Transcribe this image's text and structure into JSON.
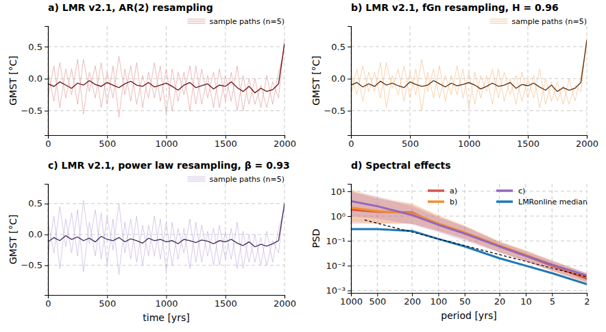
{
  "chart_data": [
    {
      "type": "line",
      "title": "a) LMR v2.1, AR(2) resampling",
      "ylabel": "GMST [°C]",
      "x": [
        0,
        50,
        100,
        150,
        200,
        250,
        300,
        350,
        400,
        450,
        500,
        550,
        600,
        650,
        700,
        750,
        800,
        850,
        900,
        950,
        1000,
        1050,
        1100,
        1150,
        1200,
        1250,
        1300,
        1350,
        1400,
        1450,
        1500,
        1550,
        1600,
        1650,
        1700,
        1750,
        1800,
        1850,
        1900,
        1950,
        2000
      ],
      "xlim": [
        0,
        2000
      ],
      "xticks": [
        0,
        500,
        1000,
        1500,
        2000
      ],
      "ylim": [
        -0.88,
        0.82
      ],
      "yticks": [
        {
          "value": -0.5,
          "label": "−0.5"
        },
        {
          "value": 0,
          "label": "0.0"
        },
        0.5
      ],
      "grid": true,
      "legend": "above right",
      "series": [
        {
          "name": "sample paths (n=5)",
          "color": "#e39a9a",
          "values": [
            0.1,
            -0.35,
            0.25,
            -0.3,
            0.15,
            -0.4,
            0.3,
            -0.2,
            0.2,
            -0.45,
            0.1,
            -0.3,
            0.35,
            -0.25,
            0.2,
            -0.4,
            0.05,
            -0.3,
            0.25,
            -0.35,
            0.15,
            -0.5,
            0.1,
            -0.25,
            0.2,
            -0.4,
            0.15,
            -0.3,
            0.1,
            -0.45,
            0.05,
            -0.35,
            0.2,
            -0.5,
            0.0,
            -0.4,
            -0.1,
            -0.45,
            -0.05,
            -0.3,
            0.6
          ]
        },
        {
          "color": "#e39a9a",
          "values": [
            -0.3,
            0.2,
            -0.45,
            0.15,
            -0.25,
            0.3,
            -0.55,
            0.1,
            -0.3,
            0.25,
            -0.4,
            0.2,
            -0.6,
            0.15,
            -0.35,
            0.25,
            -0.45,
            0.1,
            -0.3,
            0.2,
            -0.55,
            0.15,
            -0.35,
            0.1,
            -0.5,
            0.2,
            -0.4,
            0.05,
            -0.45,
            0.15,
            -0.35,
            0.1,
            -0.5,
            0.05,
            -0.4,
            0.0,
            -0.45,
            0.05,
            -0.4,
            0.1,
            0.45
          ]
        },
        {
          "color": "#6b0f12",
          "values": [
            -0.08,
            -0.12,
            -0.05,
            -0.1,
            -0.15,
            -0.07,
            -0.1,
            -0.03,
            -0.09,
            -0.12,
            -0.06,
            -0.1,
            -0.14,
            -0.08,
            -0.04,
            -0.1,
            -0.12,
            -0.06,
            -0.13,
            -0.1,
            -0.07,
            -0.12,
            -0.18,
            -0.1,
            -0.06,
            -0.14,
            -0.11,
            -0.08,
            -0.16,
            -0.1,
            -0.12,
            -0.05,
            -0.14,
            -0.2,
            -0.12,
            -0.22,
            -0.15,
            -0.2,
            -0.17,
            -0.08,
            0.55
          ]
        }
      ]
    },
    {
      "type": "line",
      "title": "b) LMR v2.1, fGn resampling, H = 0.96",
      "ylabel": "GMST [°C]",
      "x": [
        0,
        50,
        100,
        150,
        200,
        250,
        300,
        350,
        400,
        450,
        500,
        550,
        600,
        650,
        700,
        750,
        800,
        850,
        900,
        950,
        1000,
        1050,
        1100,
        1150,
        1200,
        1250,
        1300,
        1350,
        1400,
        1450,
        1500,
        1550,
        1600,
        1650,
        1700,
        1750,
        1800,
        1850,
        1900,
        1950,
        2000
      ],
      "xlim": [
        0,
        2000
      ],
      "xticks": [
        0,
        500,
        1000,
        1500,
        2000
      ],
      "ylim": [
        -0.88,
        0.82
      ],
      "yticks": [
        {
          "value": -0.5,
          "label": "−0.5"
        },
        {
          "value": 0,
          "label": "0.0"
        },
        0.5
      ],
      "grid": true,
      "legend": "above right",
      "series": [
        {
          "name": "sample paths (n=5)",
          "color": "#f6bd85",
          "values": [
            0.05,
            -0.25,
            0.2,
            -0.2,
            0.1,
            -0.3,
            0.25,
            -0.15,
            0.15,
            -0.35,
            0.1,
            -0.25,
            0.3,
            -0.2,
            0.15,
            -0.3,
            0.05,
            -0.25,
            0.2,
            -0.3,
            0.1,
            -0.4,
            0.05,
            -0.2,
            0.15,
            -0.3,
            0.1,
            -0.25,
            0.05,
            -0.35,
            0.0,
            -0.3,
            0.15,
            -0.4,
            -0.05,
            -0.35,
            -0.1,
            -0.4,
            -0.1,
            -0.2,
            0.65
          ]
        },
        {
          "color": "#f6bd85",
          "values": [
            -0.25,
            0.15,
            -0.35,
            0.1,
            -0.2,
            0.25,
            -0.45,
            0.05,
            -0.25,
            0.2,
            -0.3,
            0.15,
            -0.5,
            0.1,
            -0.3,
            0.2,
            -0.35,
            0.05,
            -0.25,
            0.15,
            -0.45,
            0.1,
            -0.3,
            0.05,
            -0.4,
            0.15,
            -0.35,
            0.0,
            -0.4,
            0.1,
            -0.3,
            0.05,
            -0.45,
            0.0,
            -0.35,
            -0.05,
            -0.4,
            0.0,
            -0.35,
            0.05,
            0.5
          ]
        },
        {
          "color": "#5a2d0c",
          "values": [
            -0.1,
            -0.06,
            -0.13,
            -0.08,
            -0.12,
            -0.04,
            -0.1,
            -0.07,
            -0.11,
            -0.14,
            -0.05,
            -0.09,
            -0.12,
            -0.1,
            -0.03,
            -0.08,
            -0.13,
            -0.07,
            -0.11,
            -0.09,
            -0.06,
            -0.1,
            -0.16,
            -0.12,
            -0.07,
            -0.12,
            -0.1,
            -0.06,
            -0.15,
            -0.09,
            -0.11,
            -0.07,
            -0.13,
            -0.18,
            -0.1,
            -0.2,
            -0.14,
            -0.18,
            -0.15,
            -0.06,
            0.6
          ]
        }
      ]
    },
    {
      "type": "line",
      "title": "c) LMR v2.1, power law resampling, β = 0.93",
      "xlabel": "time [yrs]",
      "ylabel": "GMST [°C]",
      "x": [
        0,
        50,
        100,
        150,
        200,
        250,
        300,
        350,
        400,
        450,
        500,
        550,
        600,
        650,
        700,
        750,
        800,
        850,
        900,
        950,
        1000,
        1050,
        1100,
        1150,
        1200,
        1250,
        1300,
        1350,
        1400,
        1450,
        1500,
        1550,
        1600,
        1650,
        1700,
        1750,
        1800,
        1850,
        1900,
        1950,
        2000
      ],
      "xlim": [
        0,
        2000
      ],
      "xticks": [
        0,
        500,
        1000,
        1500,
        2000
      ],
      "ylim": [
        -0.98,
        0.82
      ],
      "yticks": [
        {
          "value": -0.5,
          "label": "−0.5"
        },
        {
          "value": 0,
          "label": "0.0"
        },
        0.5
      ],
      "grid": true,
      "legend": "above right",
      "series": [
        {
          "name": "sample paths (n=5)",
          "color": "#c4aee0",
          "values": [
            0.2,
            -0.3,
            0.45,
            -0.2,
            0.35,
            -0.35,
            0.55,
            -0.15,
            0.4,
            -0.4,
            0.3,
            -0.25,
            0.5,
            -0.3,
            0.25,
            -0.45,
            0.15,
            -0.35,
            0.3,
            -0.4,
            0.2,
            -0.5,
            0.1,
            -0.3,
            0.25,
            -0.45,
            0.15,
            -0.35,
            0.1,
            -0.5,
            0.05,
            -0.4,
            0.2,
            -0.55,
            0.0,
            -0.45,
            -0.05,
            -0.5,
            -0.1,
            -0.3,
            0.55
          ]
        },
        {
          "color": "#c4aee0",
          "values": [
            -0.35,
            0.3,
            -0.55,
            0.25,
            -0.3,
            0.4,
            -0.6,
            0.2,
            -0.35,
            0.35,
            -0.5,
            0.25,
            -0.65,
            0.2,
            -0.4,
            0.3,
            -0.5,
            0.15,
            -0.35,
            0.25,
            -0.6,
            0.2,
            -0.4,
            0.1,
            -0.55,
            0.2,
            -0.45,
            0.05,
            -0.5,
            0.15,
            -0.4,
            0.1,
            -0.55,
            0.05,
            -0.45,
            0.0,
            -0.5,
            0.05,
            -0.45,
            0.1,
            0.4
          ]
        },
        {
          "color": "#3f2a56",
          "values": [
            -0.12,
            -0.05,
            -0.1,
            -0.02,
            -0.08,
            -0.04,
            -0.1,
            -0.06,
            -0.12,
            -0.03,
            -0.08,
            -0.1,
            -0.05,
            -0.12,
            -0.07,
            -0.1,
            -0.14,
            -0.06,
            -0.1,
            -0.08,
            -0.12,
            -0.1,
            -0.15,
            -0.08,
            -0.1,
            -0.13,
            -0.09,
            -0.11,
            -0.15,
            -0.1,
            -0.12,
            -0.08,
            -0.14,
            -0.18,
            -0.12,
            -0.2,
            -0.16,
            -0.19,
            -0.15,
            -0.1,
            0.5
          ]
        }
      ]
    },
    {
      "type": "line",
      "title": "d) Spectral effects",
      "xlabel": "period [yrs]",
      "ylabel": "PSD",
      "log": true,
      "grid": true,
      "legend": "upper right",
      "x": [
        1000,
        500,
        200,
        100,
        50,
        20,
        10,
        5,
        2
      ],
      "xlim": [
        1000,
        2
      ],
      "xticks": [
        1000,
        500,
        200,
        100,
        50,
        20,
        10,
        5,
        2
      ],
      "ylim": [
        0.0008,
        20
      ],
      "yticks": [
        {
          "value": 0.001,
          "label": "10⁻³"
        },
        {
          "value": 0.01,
          "label": "10⁻²"
        },
        {
          "value": 0.1,
          "label": "10⁻¹"
        },
        {
          "value": 1,
          "label": "10⁰"
        },
        {
          "value": 10,
          "label": "10¹"
        }
      ],
      "series": [
        {
          "name": "a)",
          "color": "#d9534f",
          "values": [
            1.8,
            1.5,
            1.4,
            0.45,
            0.2,
            0.06,
            0.025,
            0.01,
            0.003
          ],
          "lower": [
            0.5,
            0.5,
            0.5,
            0.25,
            0.12,
            0.035,
            0.015,
            0.006,
            0.002
          ],
          "upper": [
            10,
            5,
            3,
            1,
            0.4,
            0.09,
            0.04,
            0.015,
            0.005
          ]
        },
        {
          "name": "b)",
          "color": "#f28e2b",
          "values": [
            2.2,
            1.6,
            1.3,
            0.5,
            0.22,
            0.065,
            0.027,
            0.011,
            0.0035
          ],
          "lower": [
            0.6,
            0.5,
            0.5,
            0.25,
            0.12,
            0.035,
            0.015,
            0.006,
            0.002
          ],
          "upper": [
            12,
            6,
            3.2,
            1.1,
            0.42,
            0.1,
            0.042,
            0.017,
            0.005
          ]
        },
        {
          "name": "c)",
          "color": "#9467bd",
          "values": [
            4,
            2.5,
            1.1,
            0.45,
            0.2,
            0.06,
            0.025,
            0.011,
            0.004
          ],
          "lower": [
            1,
            0.8,
            0.45,
            0.22,
            0.1,
            0.035,
            0.015,
            0.0065,
            0.0022
          ],
          "upper": [
            10,
            6,
            2.5,
            0.9,
            0.38,
            0.09,
            0.038,
            0.016,
            0.005
          ]
        },
        {
          "name": "LMRonline median",
          "color": "#1f77b4",
          "values": [
            0.3,
            0.3,
            0.25,
            0.12,
            0.06,
            0.02,
            0.01,
            0.005,
            0.0018
          ]
        },
        {
          "color": "#000000",
          "line_style": "dashed",
          "x": [
            700,
            2
          ],
          "values": [
            0.7,
            0.0035
          ]
        }
      ]
    }
  ]
}
